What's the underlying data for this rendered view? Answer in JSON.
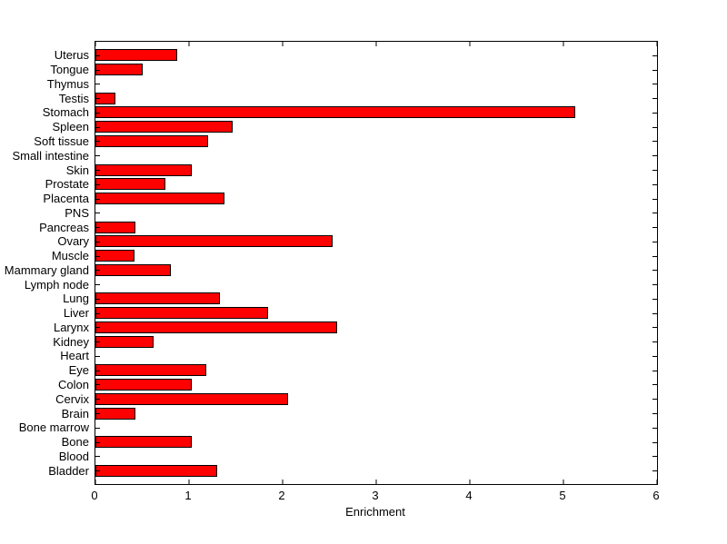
{
  "chart_data": {
    "type": "bar",
    "orientation": "horizontal",
    "title": "",
    "xlabel": "Enrichment",
    "ylabel": "",
    "xlim": [
      0,
      6
    ],
    "xticks": [
      0,
      1,
      2,
      3,
      4,
      5,
      6
    ],
    "grid": false,
    "legend": "none",
    "bar_color": "#ff0000",
    "bar_edge_color": "#000000",
    "background_color": "#ffffff",
    "categories": [
      "Uterus",
      "Tongue",
      "Thymus",
      "Testis",
      "Stomach",
      "Spleen",
      "Soft tissue",
      "Small intestine",
      "Skin",
      "Prostate",
      "Placenta",
      "PNS",
      "Pancreas",
      "Ovary",
      "Muscle",
      "Mammary gland",
      "Lymph node",
      "Lung",
      "Liver",
      "Larynx",
      "Kidney",
      "Heart",
      "Eye",
      "Colon",
      "Cervix",
      "Brain",
      "Bone marrow",
      "Bone",
      "Blood",
      "Bladder"
    ],
    "values": [
      0.87,
      0.5,
      0,
      0.21,
      5.13,
      1.47,
      1.2,
      0,
      1.03,
      0.75,
      1.38,
      0,
      0.43,
      2.53,
      0.42,
      0.81,
      0,
      1.33,
      1.84,
      2.58,
      0.62,
      0,
      1.18,
      1.03,
      2.06,
      0.43,
      0,
      1.03,
      0,
      1.3
    ]
  }
}
